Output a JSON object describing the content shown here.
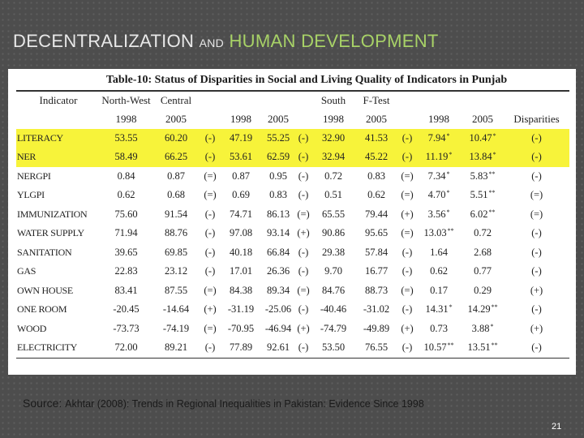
{
  "slide": {
    "title_part1": "DECENTRALIZATION ",
    "title_part2": "AND",
    "title_part3": " HUMAN DEVELOPMENT",
    "source_label": "Source: ",
    "source_text": "Akhtar (2008): Trends in Regional Inequalities in Pakistan: Evidence Since 1998",
    "page_number": "21",
    "colors": {
      "title": "#e8e8e8",
      "title_accent": "#a8d267",
      "highlight": "#f7f33a",
      "background": "#4d4d4d"
    }
  },
  "table": {
    "caption": "Table-10: Status of Disparities in Social and Living Quality of Indicators in Punjab",
    "header_row1": [
      "Indicator",
      "North-West",
      "Central",
      "",
      "",
      "",
      "",
      "South",
      "F-Test",
      "",
      "",
      "",
      ""
    ],
    "header_row2": [
      "",
      "1998",
      "2005",
      "",
      "1998",
      "2005",
      "",
      "1998",
      "2005",
      "",
      "1998",
      "2005",
      "Disparities"
    ],
    "rows": [
      {
        "indicator": "LITERACY",
        "highlight": true,
        "cells": [
          [
            "53.55",
            ""
          ],
          [
            "60.20",
            ""
          ],
          [
            "(-)",
            ""
          ],
          [
            "47.19",
            ""
          ],
          [
            "55.25",
            ""
          ],
          [
            "(-)",
            ""
          ],
          [
            "32.90",
            ""
          ],
          [
            "41.53",
            ""
          ],
          [
            "(-)",
            ""
          ],
          [
            "7.94",
            "*"
          ],
          [
            "10.47",
            "*"
          ],
          [
            "(-)",
            ""
          ]
        ]
      },
      {
        "indicator": "NER",
        "highlight": true,
        "cells": [
          [
            "58.49",
            ""
          ],
          [
            "66.25",
            ""
          ],
          [
            "(-)",
            ""
          ],
          [
            "53.61",
            ""
          ],
          [
            "62.59",
            ""
          ],
          [
            "(-)",
            ""
          ],
          [
            "32.94",
            ""
          ],
          [
            "45.22",
            ""
          ],
          [
            "(-)",
            ""
          ],
          [
            "11.19",
            "*"
          ],
          [
            "13.84",
            "*"
          ],
          [
            "(-)",
            ""
          ]
        ]
      },
      {
        "indicator": "NERGPI",
        "highlight": false,
        "cells": [
          [
            "0.84",
            ""
          ],
          [
            "0.87",
            ""
          ],
          [
            "(=)",
            ""
          ],
          [
            "0.87",
            ""
          ],
          [
            "0.95",
            ""
          ],
          [
            "(-)",
            ""
          ],
          [
            "0.72",
            ""
          ],
          [
            "0.83",
            ""
          ],
          [
            "(=)",
            ""
          ],
          [
            "7.34",
            "*"
          ],
          [
            "5.83",
            "**"
          ],
          [
            "(-)",
            ""
          ]
        ]
      },
      {
        "indicator": "YLGPI",
        "highlight": false,
        "cells": [
          [
            "0.62",
            ""
          ],
          [
            "0.68",
            ""
          ],
          [
            "(=)",
            ""
          ],
          [
            "0.69",
            ""
          ],
          [
            "0.83",
            ""
          ],
          [
            "(-)",
            ""
          ],
          [
            "0.51",
            ""
          ],
          [
            "0.62",
            ""
          ],
          [
            "(=)",
            ""
          ],
          [
            "4.70",
            "*"
          ],
          [
            "5.51",
            "**"
          ],
          [
            "(=)",
            ""
          ]
        ]
      },
      {
        "indicator": "IMMUNIZATION",
        "highlight": false,
        "cells": [
          [
            "75.60",
            ""
          ],
          [
            "91.54",
            ""
          ],
          [
            "(-)",
            ""
          ],
          [
            "74.71",
            ""
          ],
          [
            "86.13",
            ""
          ],
          [
            "(=)",
            ""
          ],
          [
            "65.55",
            ""
          ],
          [
            "79.44",
            ""
          ],
          [
            "(+)",
            ""
          ],
          [
            "3.56",
            "*"
          ],
          [
            "6.02",
            "**"
          ],
          [
            "(=)",
            ""
          ]
        ]
      },
      {
        "indicator": "WATER SUPPLY",
        "highlight": false,
        "cells": [
          [
            "71.94",
            ""
          ],
          [
            "88.76",
            ""
          ],
          [
            "(-)",
            ""
          ],
          [
            "97.08",
            ""
          ],
          [
            "93.14",
            ""
          ],
          [
            "(+)",
            ""
          ],
          [
            "90.86",
            ""
          ],
          [
            "95.65",
            ""
          ],
          [
            "(=)",
            ""
          ],
          [
            "13.03",
            "**"
          ],
          [
            "0.72",
            ""
          ],
          [
            "(-)",
            ""
          ]
        ]
      },
      {
        "indicator": "SANITATION",
        "highlight": false,
        "cells": [
          [
            "39.65",
            ""
          ],
          [
            "69.85",
            ""
          ],
          [
            "(-)",
            ""
          ],
          [
            "40.18",
            ""
          ],
          [
            "66.84",
            ""
          ],
          [
            "(-)",
            ""
          ],
          [
            "29.38",
            ""
          ],
          [
            "57.84",
            ""
          ],
          [
            "(-)",
            ""
          ],
          [
            "1.64",
            ""
          ],
          [
            "2.68",
            ""
          ],
          [
            "(-)",
            ""
          ]
        ]
      },
      {
        "indicator": "GAS",
        "highlight": false,
        "cells": [
          [
            "22.83",
            ""
          ],
          [
            "23.12",
            ""
          ],
          [
            "(-)",
            ""
          ],
          [
            "17.01",
            ""
          ],
          [
            "26.36",
            ""
          ],
          [
            "(-)",
            ""
          ],
          [
            "9.70",
            ""
          ],
          [
            "16.77",
            ""
          ],
          [
            "(-)",
            ""
          ],
          [
            "0.62",
            ""
          ],
          [
            "0.77",
            ""
          ],
          [
            "(-)",
            ""
          ]
        ]
      },
      {
        "indicator": "OWN HOUSE",
        "highlight": false,
        "cells": [
          [
            "83.41",
            ""
          ],
          [
            "87.55",
            ""
          ],
          [
            "(=)",
            ""
          ],
          [
            "84.38",
            ""
          ],
          [
            "89.34",
            ""
          ],
          [
            "(=)",
            ""
          ],
          [
            "84.76",
            ""
          ],
          [
            "88.73",
            ""
          ],
          [
            "(=)",
            ""
          ],
          [
            "0.17",
            ""
          ],
          [
            "0.29",
            ""
          ],
          [
            "(+)",
            ""
          ]
        ]
      },
      {
        "indicator": "ONE ROOM",
        "highlight": false,
        "cells": [
          [
            "-20.45",
            ""
          ],
          [
            "-14.64",
            ""
          ],
          [
            "(+)",
            ""
          ],
          [
            "-31.19",
            ""
          ],
          [
            "-25.06",
            ""
          ],
          [
            "(-)",
            ""
          ],
          [
            "-40.46",
            ""
          ],
          [
            "-31.02",
            ""
          ],
          [
            "(-)",
            ""
          ],
          [
            "14.31",
            "*"
          ],
          [
            "14.29",
            "**"
          ],
          [
            "(-)",
            ""
          ]
        ]
      },
      {
        "indicator": "WOOD",
        "highlight": false,
        "cells": [
          [
            "-73.73",
            ""
          ],
          [
            "-74.19",
            ""
          ],
          [
            "(=)",
            ""
          ],
          [
            "-70.95",
            ""
          ],
          [
            "-46.94",
            ""
          ],
          [
            "(+)",
            ""
          ],
          [
            "-74.79",
            ""
          ],
          [
            "-49.89",
            ""
          ],
          [
            "(+)",
            ""
          ],
          [
            "0.73",
            ""
          ],
          [
            "3.88",
            "*"
          ],
          [
            "(+)",
            ""
          ]
        ]
      },
      {
        "indicator": "ELECTRICITY",
        "highlight": false,
        "cells": [
          [
            "72.00",
            ""
          ],
          [
            "89.21",
            ""
          ],
          [
            "(-)",
            ""
          ],
          [
            "77.89",
            ""
          ],
          [
            "92.61",
            ""
          ],
          [
            "(-)",
            ""
          ],
          [
            "53.50",
            ""
          ],
          [
            "76.55",
            ""
          ],
          [
            "(-)",
            ""
          ],
          [
            "10.57",
            "**"
          ],
          [
            "13.51",
            "**"
          ],
          [
            "(-)",
            ""
          ]
        ]
      }
    ]
  }
}
